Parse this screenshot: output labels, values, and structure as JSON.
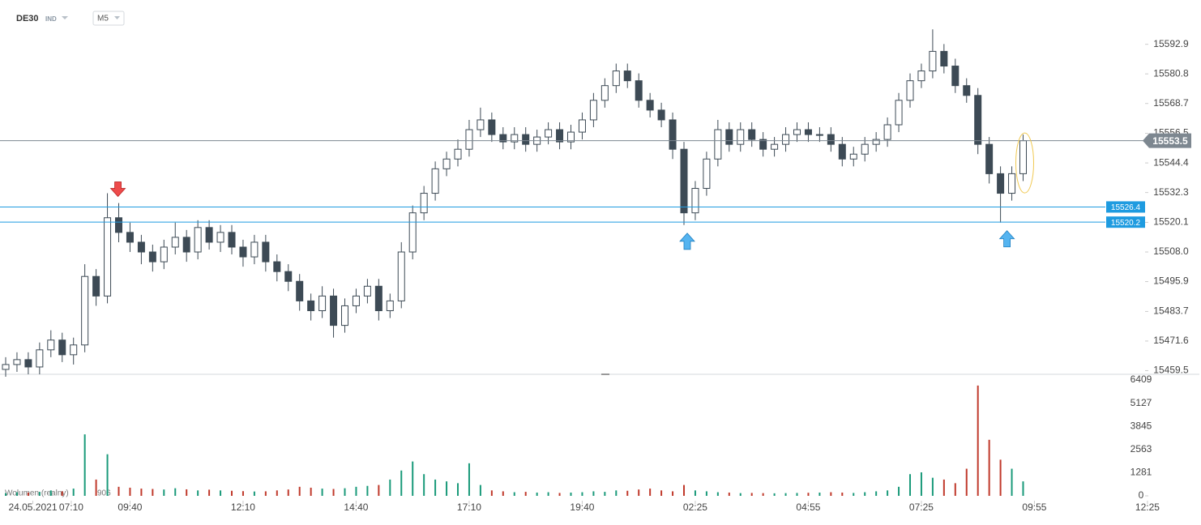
{
  "chart_data": {
    "type": "candlestick",
    "title": "DE30",
    "instrument_type": "IND",
    "timeframe": "M5",
    "open": [
      15460,
      15462,
      15464,
      15461,
      15468,
      15472,
      15466,
      15470,
      15498,
      15490,
      15522,
      15516,
      15512,
      15508,
      15504,
      15510,
      15514,
      15508,
      15518,
      15512,
      15516,
      15510,
      15506,
      15512,
      15504,
      15500,
      15496,
      15488,
      15484,
      15490,
      15478,
      15486,
      15490,
      15494,
      15484,
      15488,
      15508,
      15524,
      15532,
      15542,
      15546,
      15550,
      15558,
      15562,
      15556,
      15553,
      15556,
      15552,
      15555,
      15558,
      15553,
      15557,
      15562,
      15570,
      15576,
      15582,
      15578,
      15570,
      15566,
      15562,
      15550,
      15524,
      15534,
      15546,
      15558,
      15552,
      15558,
      15554,
      15550,
      15552,
      15556,
      15558,
      15556,
      15556,
      15552,
      15546,
      15548,
      15552,
      15554,
      15560,
      15570,
      15578,
      15582,
      15590,
      15584,
      15576,
      15572,
      15552,
      15540,
      15532,
      15540
    ],
    "high": [
      15465,
      15467,
      15467,
      15471,
      15476,
      15475,
      15473,
      15503,
      15501,
      15532,
      15528,
      15520,
      15515,
      15511,
      15513,
      15520,
      15517,
      15521,
      15521,
      15519,
      15519,
      15513,
      15515,
      15515,
      15507,
      15503,
      15499,
      15491,
      15494,
      15493,
      15489,
      15493,
      15497,
      15497,
      15491,
      15512,
      15527,
      15535,
      15545,
      15549,
      15554,
      15562,
      15567,
      15565,
      15559,
      15559,
      15559,
      15558,
      15561,
      15561,
      15560,
      15565,
      15573,
      15579,
      15585,
      15585,
      15581,
      15573,
      15569,
      15565,
      15553,
      15537,
      15549,
      15562,
      15561,
      15561,
      15561,
      15557,
      15555,
      15559,
      15561,
      15561,
      15559,
      15559,
      15555,
      15551,
      15555,
      15557,
      15563,
      15573,
      15581,
      15585,
      15599,
      15593,
      15587,
      15579,
      15575,
      15555,
      15543,
      15543,
      15556
    ],
    "low": [
      15457,
      15459,
      15458,
      15458,
      15465,
      15463,
      15462,
      15467,
      15486,
      15487,
      15512,
      15508,
      15503,
      15500,
      15501,
      15507,
      15504,
      15505,
      15509,
      15508,
      15507,
      15502,
      15503,
      15500,
      15496,
      15492,
      15484,
      15480,
      15481,
      15473,
      15475,
      15483,
      15487,
      15480,
      15481,
      15485,
      15505,
      15521,
      15529,
      15539,
      15543,
      15547,
      15555,
      15553,
      15550,
      15550,
      15549,
      15549,
      15552,
      15550,
      15550,
      15554,
      15559,
      15567,
      15573,
      15575,
      15567,
      15563,
      15559,
      15546,
      15519,
      15521,
      15531,
      15543,
      15549,
      15549,
      15551,
      15547,
      15547,
      15549,
      15553,
      15553,
      15553,
      15549,
      15543,
      15543,
      15545,
      15549,
      15551,
      15557,
      15567,
      15575,
      15579,
      15581,
      15573,
      15569,
      15548,
      15536,
      15520,
      15529,
      15537
    ],
    "close": [
      15462,
      15464,
      15461,
      15468,
      15472,
      15466,
      15470,
      15498,
      15490,
      15522,
      15516,
      15512,
      15508,
      15504,
      15510,
      15514,
      15508,
      15518,
      15512,
      15516,
      15510,
      15506,
      15512,
      15504,
      15500,
      15496,
      15488,
      15484,
      15490,
      15478,
      15486,
      15490,
      15494,
      15484,
      15488,
      15508,
      15524,
      15532,
      15542,
      15546,
      15550,
      15558,
      15562,
      15556,
      15553,
      15556,
      15552,
      15555,
      15558,
      15553,
      15557,
      15562,
      15570,
      15576,
      15582,
      15578,
      15570,
      15566,
      15562,
      15550,
      15524,
      15534,
      15546,
      15558,
      15552,
      15558,
      15554,
      15550,
      15552,
      15556,
      15558,
      15556,
      15556,
      15552,
      15546,
      15548,
      15552,
      15554,
      15560,
      15570,
      15578,
      15582,
      15590,
      15584,
      15576,
      15572,
      15552,
      15540,
      15532,
      15540,
      15553.5
    ],
    "volume": [
      150,
      200,
      180,
      220,
      300,
      250,
      400,
      3400,
      900,
      2300,
      500,
      450,
      400,
      380,
      350,
      420,
      360,
      300,
      340,
      300,
      280,
      260,
      240,
      250,
      300,
      350,
      500,
      450,
      400,
      380,
      420,
      500,
      550,
      600,
      900,
      1400,
      1900,
      1200,
      900,
      800,
      700,
      1800,
      600,
      300,
      250,
      200,
      220,
      180,
      200,
      160,
      180,
      200,
      250,
      220,
      300,
      280,
      350,
      400,
      300,
      250,
      600,
      300,
      250,
      200,
      180,
      150,
      160,
      150,
      140,
      150,
      160,
      170,
      180,
      200,
      180,
      160,
      200,
      250,
      300,
      500,
      1200,
      1300,
      1000,
      900,
      700,
      1500,
      6100,
      3100,
      2000,
      1500,
      800
    ],
    "up_color": "#ffffff",
    "down_color": "#3d4a55",
    "wick_color": "#3d4a55",
    "volume_up_color": "#1a9a7a",
    "volume_down_color": "#c0392b",
    "ylim": [
      15458,
      15611
    ],
    "yticks": [
      15592.9,
      15580.8,
      15568.7,
      15556.5,
      15544.4,
      15532.3,
      15520.1,
      {
        "value": 15508.0,
        "label": "15508.0"
      },
      15495.9,
      15483.7,
      15471.6,
      15459.5
    ],
    "volume_ylim": [
      0,
      6722
    ],
    "volume_ticks": [
      6409,
      5127,
      3845,
      2563,
      1281,
      0
    ],
    "xticks": [
      {
        "value": 2.4,
        "label": "24.05.2021"
      },
      {
        "value": 5.8,
        "label": "07:10"
      },
      {
        "value": 11,
        "label": "09:40"
      },
      {
        "value": 21,
        "label": "12:10"
      },
      {
        "value": 31,
        "label": "14:40"
      },
      {
        "value": 41,
        "label": "17:10"
      },
      {
        "value": 51,
        "label": "19:40"
      },
      {
        "value": 61,
        "label": "02:25"
      },
      {
        "value": 71,
        "label": "04:55"
      },
      {
        "value": 81,
        "label": "07:25"
      },
      {
        "value": 91,
        "label": "09:55"
      },
      {
        "value": 101,
        "label": "12:25"
      }
    ],
    "hlines": [
      {
        "value": 15553.5,
        "color": "#7d8790"
      },
      {
        "value": 15526.4,
        "color": "#1e9be0"
      },
      {
        "value": 15520.2,
        "color": "#1e9be0"
      }
    ],
    "volume_legend": {
      "name": "Wolumen (realny)",
      "value": 906
    }
  }
}
